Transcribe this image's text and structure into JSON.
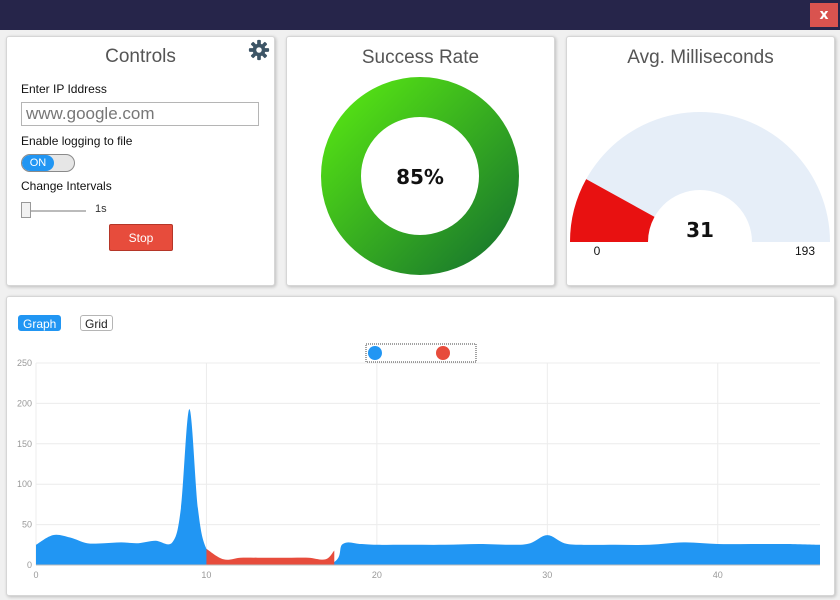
{
  "window": {
    "close_label": "x"
  },
  "controls": {
    "title": "Controls",
    "ip_label": "Enter IP Iddress",
    "ip_value": "www.google.com",
    "logging_label": "Enable logging to file",
    "toggle_label": "ON",
    "toggle_on": true,
    "interval_label": "Change Intervals",
    "interval_value": "1s",
    "slider_level": 0,
    "stop_label": "Stop"
  },
  "success": {
    "title": "Success Rate",
    "value_text": "85%",
    "value": 85
  },
  "latency": {
    "title": "Avg. Milliseconds",
    "value_text": "31",
    "min_text": "0",
    "max_text": "193",
    "value": 31,
    "min": 0,
    "max": 193
  },
  "graph_panel": {
    "tabs": [
      {
        "label": "Graph",
        "active": true
      },
      {
        "label": "Grid",
        "active": false
      }
    ]
  },
  "colors": {
    "success": "#2196f3",
    "fail": "#e74c3c",
    "donut_light": "#55e214",
    "donut_dark": "#1a7a2c",
    "gauge_red": "#e81111",
    "gauge_bg": "#e6eef8",
    "titlebar": "#26254a"
  },
  "chart_data": {
    "type": "area",
    "xlim": [
      0,
      46
    ],
    "ylim": [
      0,
      250
    ],
    "xticks": [
      0,
      10,
      20,
      30,
      40
    ],
    "yticks": [
      0,
      50,
      100,
      150,
      200,
      250
    ],
    "legend_position": "top-center",
    "grid": true,
    "series": [
      {
        "color": "#2196f3",
        "points": [
          [
            0,
            25
          ],
          [
            1,
            37
          ],
          [
            2,
            34
          ],
          [
            3,
            27
          ],
          [
            4,
            27
          ],
          [
            5,
            28
          ],
          [
            6,
            27
          ],
          [
            7,
            30
          ],
          [
            8,
            28
          ],
          [
            8.5,
            70
          ],
          [
            9,
            193
          ],
          [
            9.5,
            70
          ],
          [
            10,
            20
          ],
          [
            11,
            0
          ],
          [
            17,
            0
          ],
          [
            18,
            26
          ],
          [
            19,
            26
          ],
          [
            20,
            25
          ],
          [
            22,
            25
          ],
          [
            24,
            25
          ],
          [
            26,
            26
          ],
          [
            28,
            25
          ],
          [
            29,
            27
          ],
          [
            30,
            37
          ],
          [
            31,
            27
          ],
          [
            32,
            25
          ],
          [
            34,
            25
          ],
          [
            36,
            25
          ],
          [
            38,
            28
          ],
          [
            40,
            26
          ],
          [
            42,
            26
          ],
          [
            44,
            26
          ],
          [
            46,
            25
          ]
        ]
      },
      {
        "color": "#e74c3c",
        "points": [
          [
            10,
            20
          ],
          [
            11,
            7
          ],
          [
            12,
            9
          ],
          [
            13,
            9
          ],
          [
            14,
            9
          ],
          [
            15,
            9
          ],
          [
            16,
            9
          ],
          [
            17,
            7
          ],
          [
            17.5,
            18
          ]
        ]
      }
    ]
  }
}
